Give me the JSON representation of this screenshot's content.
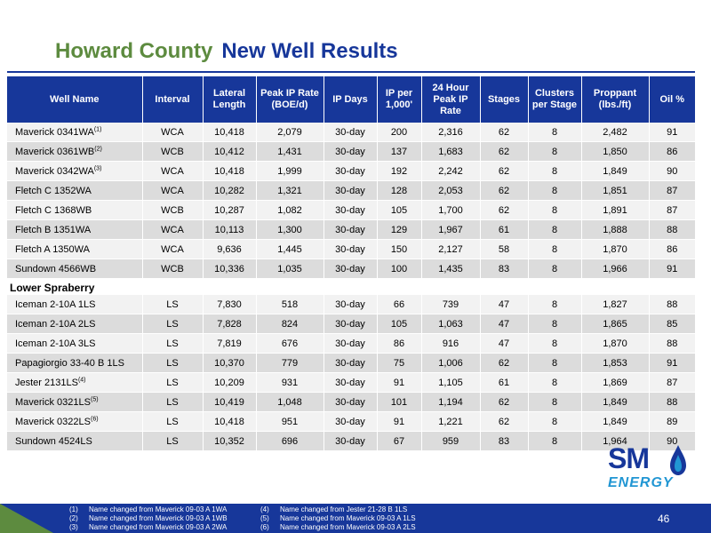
{
  "title": {
    "part1": "Howard County",
    "part2": "New Well Results"
  },
  "columns": [
    "Well Name",
    "Interval",
    "Lateral Length",
    "Peak IP Rate (BOE/d)",
    "IP Days",
    "IP per 1,000'",
    "24 Hour Peak IP Rate",
    "Stages",
    "Clusters per Stage",
    "Proppant (lbs./ft)",
    "Oil %"
  ],
  "rows": [
    {
      "name": "Maverick 0341WA",
      "sup": "(1)",
      "interval": "WCA",
      "lateral": "10,418",
      "peak": "2,079",
      "days": "30-day",
      "ipk": "200",
      "h24": "2,316",
      "stages": "62",
      "clusters": "8",
      "proppant": "2,482",
      "oil": "91"
    },
    {
      "name": "Maverick 0361WB",
      "sup": "(2)",
      "interval": "WCB",
      "lateral": "10,412",
      "peak": "1,431",
      "days": "30-day",
      "ipk": "137",
      "h24": "1,683",
      "stages": "62",
      "clusters": "8",
      "proppant": "1,850",
      "oil": "86"
    },
    {
      "name": "Maverick 0342WA",
      "sup": "(3)",
      "interval": "WCA",
      "lateral": "10,418",
      "peak": "1,999",
      "days": "30-day",
      "ipk": "192",
      "h24": "2,242",
      "stages": "62",
      "clusters": "8",
      "proppant": "1,849",
      "oil": "90"
    },
    {
      "name": "Fletch C 1352WA",
      "sup": "",
      "interval": "WCA",
      "lateral": "10,282",
      "peak": "1,321",
      "days": "30-day",
      "ipk": "128",
      "h24": "2,053",
      "stages": "62",
      "clusters": "8",
      "proppant": "1,851",
      "oil": "87"
    },
    {
      "name": "Fletch C 1368WB",
      "sup": "",
      "interval": "WCB",
      "lateral": "10,287",
      "peak": "1,082",
      "days": "30-day",
      "ipk": "105",
      "h24": "1,700",
      "stages": "62",
      "clusters": "8",
      "proppant": "1,891",
      "oil": "87"
    },
    {
      "name": "Fletch B 1351WA",
      "sup": "",
      "interval": "WCA",
      "lateral": "10,113",
      "peak": "1,300",
      "days": "30-day",
      "ipk": "129",
      "h24": "1,967",
      "stages": "61",
      "clusters": "8",
      "proppant": "1,888",
      "oil": "88"
    },
    {
      "name": "Fletch A 1350WA",
      "sup": "",
      "interval": "WCA",
      "lateral": "9,636",
      "peak": "1,445",
      "days": "30-day",
      "ipk": "150",
      "h24": "2,127",
      "stages": "58",
      "clusters": "8",
      "proppant": "1,870",
      "oil": "86"
    },
    {
      "name": "Sundown 4566WB",
      "sup": "",
      "interval": "WCB",
      "lateral": "10,336",
      "peak": "1,035",
      "days": "30-day",
      "ipk": "100",
      "h24": "1,435",
      "stages": "83",
      "clusters": "8",
      "proppant": "1,966",
      "oil": "91"
    }
  ],
  "section_label": "Lower Spraberry",
  "rows2": [
    {
      "name": "Iceman 2-10A 1LS",
      "sup": "",
      "interval": "LS",
      "lateral": "7,830",
      "peak": "518",
      "days": "30-day",
      "ipk": "66",
      "h24": "739",
      "stages": "47",
      "clusters": "8",
      "proppant": "1,827",
      "oil": "88"
    },
    {
      "name": "Iceman 2-10A 2LS",
      "sup": "",
      "interval": "LS",
      "lateral": "7,828",
      "peak": "824",
      "days": "30-day",
      "ipk": "105",
      "h24": "1,063",
      "stages": "47",
      "clusters": "8",
      "proppant": "1,865",
      "oil": "85"
    },
    {
      "name": "Iceman 2-10A 3LS",
      "sup": "",
      "interval": "LS",
      "lateral": "7,819",
      "peak": "676",
      "days": "30-day",
      "ipk": "86",
      "h24": "916",
      "stages": "47",
      "clusters": "8",
      "proppant": "1,870",
      "oil": "88"
    },
    {
      "name": "Papagiorgio 33-40 B 1LS",
      "sup": "",
      "interval": "LS",
      "lateral": "10,370",
      "peak": "779",
      "days": "30-day",
      "ipk": "75",
      "h24": "1,006",
      "stages": "62",
      "clusters": "8",
      "proppant": "1,853",
      "oil": "91"
    },
    {
      "name": "Jester 2131LS",
      "sup": "(4)",
      "interval": "LS",
      "lateral": "10,209",
      "peak": "931",
      "days": "30-day",
      "ipk": "91",
      "h24": "1,105",
      "stages": "61",
      "clusters": "8",
      "proppant": "1,869",
      "oil": "87"
    },
    {
      "name": "Maverick 0321LS",
      "sup": "(5)",
      "interval": "LS",
      "lateral": "10,419",
      "peak": "1,048",
      "days": "30-day",
      "ipk": "101",
      "h24": "1,194",
      "stages": "62",
      "clusters": "8",
      "proppant": "1,849",
      "oil": "88"
    },
    {
      "name": "Maverick 0322LS",
      "sup": "(6)",
      "interval": "LS",
      "lateral": "10,418",
      "peak": "951",
      "days": "30-day",
      "ipk": "91",
      "h24": "1,221",
      "stages": "62",
      "clusters": "8",
      "proppant": "1,849",
      "oil": "89"
    },
    {
      "name": "Sundown 4524LS",
      "sup": "",
      "interval": "LS",
      "lateral": "10,352",
      "peak": "696",
      "days": "30-day",
      "ipk": "67",
      "h24": "959",
      "stages": "83",
      "clusters": "8",
      "proppant": "1,964",
      "oil": "90"
    }
  ],
  "logo": {
    "sm": "SM",
    "energy": "ENERGY",
    "icon": "flame-drop-icon"
  },
  "footnotes": [
    {
      "n1": "(1)",
      "t1": "Name changed from Maverick 09-03 A 1WA",
      "n2": "(4)",
      "t2": "Name changed from Jester 21-28 B 1LS"
    },
    {
      "n1": "(2)",
      "t1": "Name changed from Maverick 09-03 A 1WB",
      "n2": "(5)",
      "t2": "Name changed from Maverick 09-03 A 1LS"
    },
    {
      "n1": "(3)",
      "t1": "Name changed from Maverick 09-03 A 2WA",
      "n2": "(6)",
      "t2": "Name changed from Maverick 09-03 A 2LS"
    }
  ],
  "page_number": "46",
  "colors": {
    "header_blue": "#17379a",
    "title_green": "#5d8b3f",
    "footer_green": "#5d8b3f",
    "logo_light_blue": "#2196d3"
  }
}
